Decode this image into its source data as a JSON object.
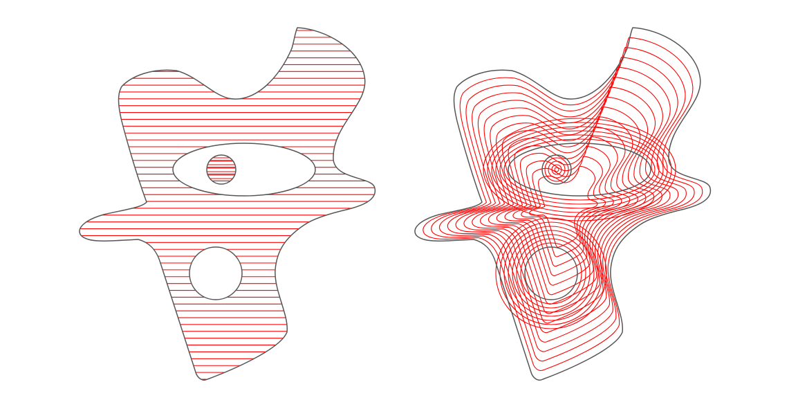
{
  "figure": {
    "background": "#ffffff",
    "outline_color": "#555555",
    "toolpath_color": "#ff0000",
    "panels": [
      {
        "id": "zigzag",
        "fill_pattern": "parallel-horizontal-lines",
        "line_count": 52,
        "holes": 3
      },
      {
        "id": "contour",
        "fill_pattern": "concentric-offset-contours",
        "contour_count": 14,
        "holes": 3
      }
    ]
  }
}
